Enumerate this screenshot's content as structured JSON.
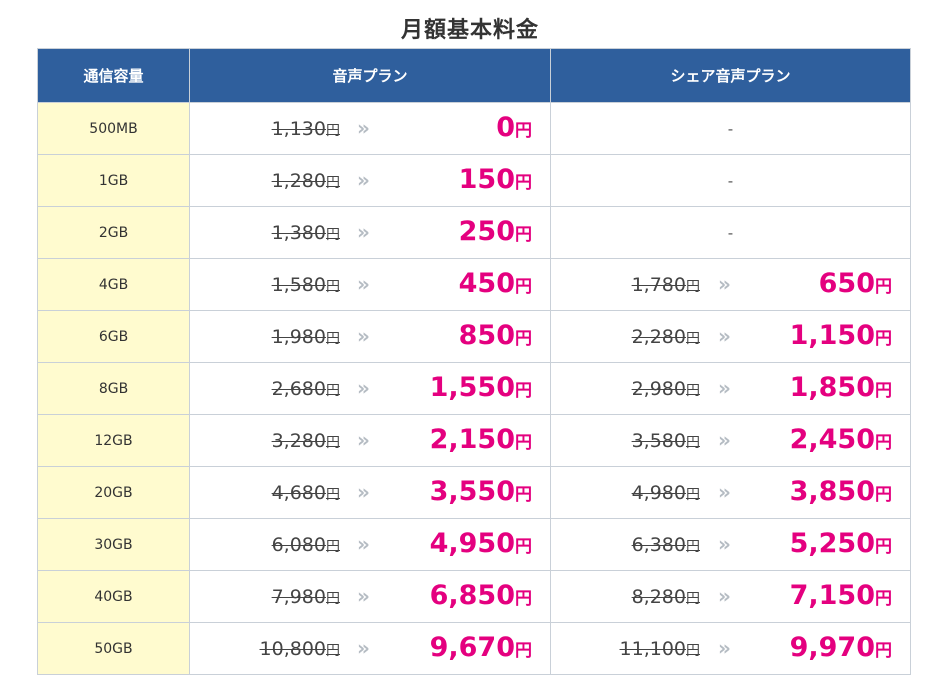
{
  "title": "月額基本料金",
  "headers": [
    "通信容量",
    "音声プラン",
    "シェア音声プラン"
  ],
  "yen": "円",
  "arrow": "»",
  "dash": "-",
  "rows": [
    {
      "capacity": "500MB",
      "voice_old": "1,130",
      "voice_new": "0",
      "share_old": null,
      "share_new": null
    },
    {
      "capacity": "1GB",
      "voice_old": "1,280",
      "voice_new": "150",
      "share_old": null,
      "share_new": null
    },
    {
      "capacity": "2GB",
      "voice_old": "1,380",
      "voice_new": "250",
      "share_old": null,
      "share_new": null
    },
    {
      "capacity": "4GB",
      "voice_old": "1,580",
      "voice_new": "450",
      "share_old": "1,780",
      "share_new": "650"
    },
    {
      "capacity": "6GB",
      "voice_old": "1,980",
      "voice_new": "850",
      "share_old": "2,280",
      "share_new": "1,150"
    },
    {
      "capacity": "8GB",
      "voice_old": "2,680",
      "voice_new": "1,550",
      "share_old": "2,980",
      "share_new": "1,850"
    },
    {
      "capacity": "12GB",
      "voice_old": "3,280",
      "voice_new": "2,150",
      "share_old": "3,580",
      "share_new": "2,450"
    },
    {
      "capacity": "20GB",
      "voice_old": "4,680",
      "voice_new": "3,550",
      "share_old": "4,980",
      "share_new": "3,850"
    },
    {
      "capacity": "30GB",
      "voice_old": "6,080",
      "voice_new": "4,950",
      "share_old": "6,380",
      "share_new": "5,250"
    },
    {
      "capacity": "40GB",
      "voice_old": "7,980",
      "voice_new": "6,850",
      "share_old": "8,280",
      "share_new": "7,150"
    },
    {
      "capacity": "50GB",
      "voice_old": "10,800",
      "voice_new": "9,670",
      "share_old": "11,100",
      "share_new": "9,970"
    }
  ],
  "colors": {
    "header_bg": "#2f5f9d",
    "capacity_bg": "#fffbcf",
    "new_price": "#e4007f",
    "arrow": "#b5bcc3"
  }
}
